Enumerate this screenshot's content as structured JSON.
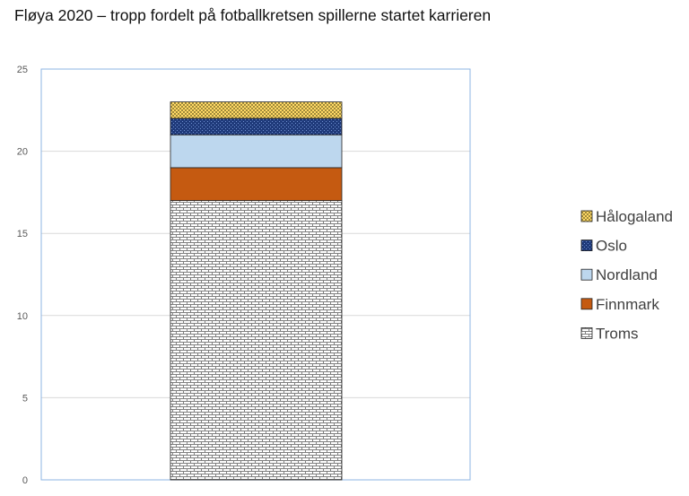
{
  "title": "Fløya 2020 – tropp fordelt på fotballkretsen spillerne startet karrieren",
  "chart_data": {
    "type": "bar",
    "stacked": true,
    "title": "Fløya 2020 – tropp fordelt på fotballkretsen spillerne startet karrieren",
    "xlabel": "",
    "ylabel": "",
    "categories": [
      ""
    ],
    "ylim": [
      0,
      25
    ],
    "yticks": [
      0,
      5,
      10,
      15,
      20,
      25
    ],
    "grid": true,
    "legend_position": "right",
    "series": [
      {
        "name": "Troms",
        "values": [
          17
        ],
        "color": "#ffffff",
        "pattern": "brick"
      },
      {
        "name": "Finnmark",
        "values": [
          2
        ],
        "color": "#c55a11",
        "pattern": "solid"
      },
      {
        "name": "Nordland",
        "values": [
          2
        ],
        "color": "#bdd7ee",
        "pattern": "solid"
      },
      {
        "name": "Oslo",
        "values": [
          1
        ],
        "color": "#1f3a7a",
        "pattern": "dots"
      },
      {
        "name": "Hålogaland",
        "values": [
          1
        ],
        "color": "#ffd966",
        "pattern": "checker"
      }
    ]
  }
}
